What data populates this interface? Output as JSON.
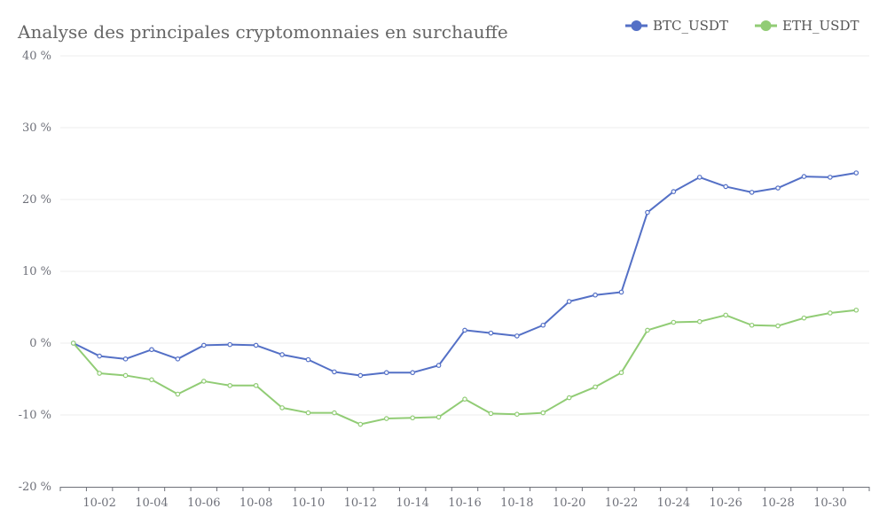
{
  "chart_data": {
    "type": "line",
    "title": "Analyse des principales cryptomonnaies en surchauffe",
    "xlabel": "",
    "ylabel": "",
    "ylim": [
      -20,
      40
    ],
    "yticks": [
      "40 %",
      "30 %",
      "20 %",
      "10 %",
      "0 %",
      "-10 %",
      "-20 %"
    ],
    "ytick_values": [
      40,
      30,
      20,
      10,
      0,
      -10,
      -20
    ],
    "x": [
      "10-01",
      "10-02",
      "10-03",
      "10-04",
      "10-05",
      "10-06",
      "10-07",
      "10-08",
      "10-09",
      "10-10",
      "10-11",
      "10-12",
      "10-13",
      "10-14",
      "10-15",
      "10-16",
      "10-17",
      "10-18",
      "10-19",
      "10-20",
      "10-21",
      "10-22",
      "10-23",
      "10-24",
      "10-25",
      "10-26",
      "10-27",
      "10-28",
      "10-29",
      "10-30",
      "10-31"
    ],
    "xtick_labels": [
      "10-02",
      "10-04",
      "10-06",
      "10-08",
      "10-10",
      "10-12",
      "10-14",
      "10-16",
      "10-18",
      "10-20",
      "10-22",
      "10-24",
      "10-26",
      "10-28",
      "10-30"
    ],
    "series": [
      {
        "name": "BTC_USDT",
        "color": "#5470c6",
        "values": [
          0,
          -1.8,
          -2.2,
          -0.9,
          -2.2,
          -0.3,
          -0.2,
          -0.3,
          -1.6,
          -2.3,
          -4.0,
          -4.5,
          -4.1,
          -4.1,
          -3.1,
          1.8,
          1.4,
          1.0,
          2.5,
          5.8,
          6.7,
          7.1,
          18.2,
          21.1,
          23.1,
          21.8,
          21.0,
          21.6,
          23.2,
          23.1,
          23.7
        ]
      },
      {
        "name": "ETH_USDT",
        "color": "#91cc75",
        "values": [
          0,
          -4.2,
          -4.5,
          -5.1,
          -7.1,
          -5.3,
          -5.9,
          -5.9,
          -9.0,
          -9.7,
          -9.7,
          -11.3,
          -10.5,
          -10.4,
          -10.3,
          -7.8,
          -9.8,
          -9.9,
          -9.7,
          -7.6,
          -6.1,
          -4.1,
          1.8,
          2.9,
          3.0,
          3.9,
          2.5,
          2.4,
          3.5,
          4.2,
          4.6
        ]
      }
    ],
    "legend_position": "top-right",
    "grid": true
  }
}
